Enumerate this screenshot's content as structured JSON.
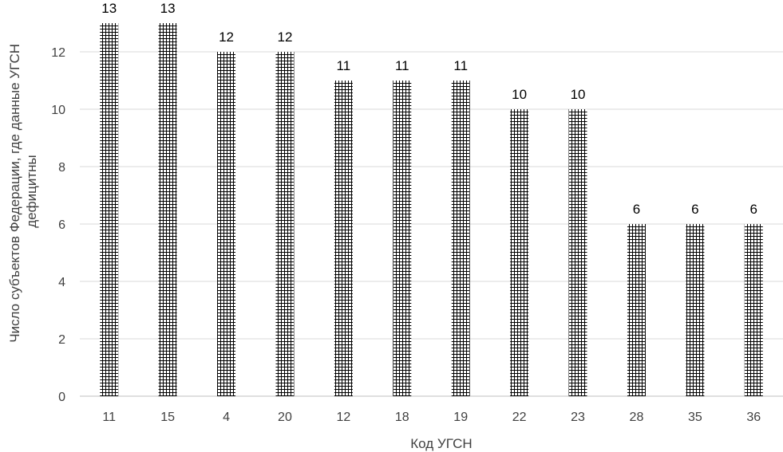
{
  "chart_data": {
    "type": "bar",
    "categories": [
      "11",
      "15",
      "4",
      "20",
      "12",
      "18",
      "19",
      "22",
      "23",
      "28",
      "35",
      "36"
    ],
    "values": [
      13,
      13,
      12,
      12,
      11,
      11,
      11,
      10,
      10,
      6,
      6,
      6
    ],
    "xlabel": "Код УГСН",
    "ylabel_lines": [
      "Число субъектов Федерации, где данные УГСН",
      "дефицитны"
    ],
    "ylim": [
      0,
      13
    ],
    "yticks": [
      0,
      2,
      4,
      6,
      8,
      10,
      12
    ],
    "grid": true,
    "legend": "none",
    "bar_pattern": "crosshatch",
    "colors": {
      "bar_fill": "#ffffff",
      "bar_hatch": "#000000",
      "grid": "#d9d9d9",
      "text": "#404040"
    }
  }
}
